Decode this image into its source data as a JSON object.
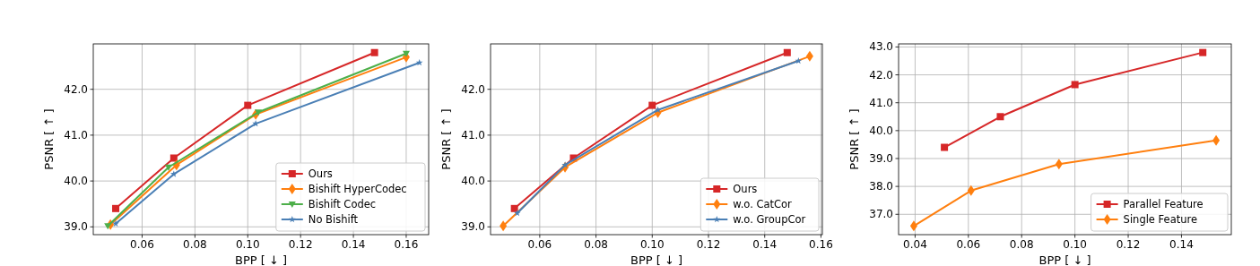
{
  "chart_data": [
    {
      "type": "line",
      "xlabel": "BPP [ ↓ ]",
      "ylabel": "PSNR [ ↑ ]",
      "xlim": [
        0.0415,
        0.1685
      ],
      "ylim": [
        38.83,
        42.99
      ],
      "xticks": [
        {
          "value": 0.06,
          "label": "0.06"
        },
        {
          "value": 0.08,
          "label": "0.08"
        },
        {
          "value": 0.1,
          "label": "0.10"
        },
        {
          "value": 0.12,
          "label": "0.12"
        },
        {
          "value": 0.14,
          "label": "0.14"
        },
        {
          "value": 0.16,
          "label": "0.16"
        }
      ],
      "yticks": [
        {
          "value": 39,
          "label": "39.0"
        },
        {
          "value": 40,
          "label": "40.0"
        },
        {
          "value": 41,
          "label": "41.0"
        },
        {
          "value": 42,
          "label": "42.0"
        }
      ],
      "grid": true,
      "legend": "bottom right",
      "series": [
        {
          "name": "Ours",
          "color": "#d62728",
          "marker": "square",
          "x": [
            0.05,
            0.072,
            0.1,
            0.148
          ],
          "values": [
            39.4,
            40.5,
            41.65,
            42.8
          ]
        },
        {
          "name": "Bishift HyperCodec",
          "color": "#ff7f0e",
          "marker": "diamond",
          "x": [
            0.048,
            0.073,
            0.103,
            0.16
          ],
          "values": [
            39.05,
            40.35,
            41.45,
            42.7
          ]
        },
        {
          "name": "Bishift Codec",
          "color": "#4daf4a",
          "marker": "triangle",
          "x": [
            0.047,
            0.07,
            0.104,
            0.16
          ],
          "values": [
            39.02,
            40.3,
            41.5,
            42.78
          ]
        },
        {
          "name": "No Bishift",
          "color": "#4a7fb5",
          "marker": "star",
          "x": [
            0.05,
            0.072,
            0.103,
            0.165
          ],
          "values": [
            39.07,
            40.15,
            41.25,
            42.58
          ]
        }
      ]
    },
    {
      "type": "line",
      "xlabel": "BPP [ ↓ ]",
      "ylabel": "PSNR [ ↑ ]",
      "xlim": [
        0.0425,
        0.1605
      ],
      "ylim": [
        38.83,
        42.99
      ],
      "xticks": [
        {
          "value": 0.06,
          "label": "0.06"
        },
        {
          "value": 0.08,
          "label": "0.08"
        },
        {
          "value": 0.1,
          "label": "0.10"
        },
        {
          "value": 0.12,
          "label": "0.12"
        },
        {
          "value": 0.14,
          "label": "0.14"
        },
        {
          "value": 0.16,
          "label": "0.16"
        }
      ],
      "yticks": [
        {
          "value": 39,
          "label": "39.0"
        },
        {
          "value": 40,
          "label": "40.0"
        },
        {
          "value": 41,
          "label": "41.0"
        },
        {
          "value": 42,
          "label": "42.0"
        }
      ],
      "grid": true,
      "legend": "bottom right",
      "series": [
        {
          "name": "Ours",
          "color": "#d62728",
          "marker": "square",
          "x": [
            0.051,
            0.072,
            0.1,
            0.148
          ],
          "values": [
            39.4,
            40.5,
            41.65,
            42.8
          ]
        },
        {
          "name": "w.o. CatCor",
          "color": "#ff7f0e",
          "marker": "diamond",
          "x": [
            0.047,
            0.069,
            0.102,
            0.156
          ],
          "values": [
            39.02,
            40.3,
            41.49,
            42.72
          ]
        },
        {
          "name": "w.o. GroupCor",
          "color": "#4a7fb5",
          "marker": "star",
          "x": [
            0.052,
            0.069,
            0.102,
            0.152
          ],
          "values": [
            39.3,
            40.35,
            41.55,
            42.62
          ]
        }
      ]
    },
    {
      "type": "line",
      "xlabel": "BPP [ ↓ ]",
      "ylabel": "PSNR [ ↑ ]",
      "xlim": [
        0.0338,
        0.1587
      ],
      "ylim": [
        36.27,
        43.11
      ],
      "xticks": [
        {
          "value": 0.04,
          "label": "0.04"
        },
        {
          "value": 0.06,
          "label": "0.06"
        },
        {
          "value": 0.08,
          "label": "0.08"
        },
        {
          "value": 0.1,
          "label": "0.10"
        },
        {
          "value": 0.12,
          "label": "0.12"
        },
        {
          "value": 0.14,
          "label": "0.14"
        }
      ],
      "yticks": [
        {
          "value": 37,
          "label": "37.0"
        },
        {
          "value": 38,
          "label": "38.0"
        },
        {
          "value": 39,
          "label": "39.0"
        },
        {
          "value": 40,
          "label": "40.0"
        },
        {
          "value": 41,
          "label": "41.0"
        },
        {
          "value": 42,
          "label": "42.0"
        },
        {
          "value": 43,
          "label": "43.0"
        }
      ],
      "grid": true,
      "legend": "bottom right",
      "series": [
        {
          "name": "Parallel Feature",
          "color": "#d62728",
          "marker": "square",
          "x": [
            0.051,
            0.072,
            0.1,
            0.148
          ],
          "values": [
            39.4,
            40.5,
            41.65,
            42.8
          ]
        },
        {
          "name": "Single Feature",
          "color": "#ff7f0e",
          "marker": "diamond",
          "x": [
            0.0395,
            0.061,
            0.094,
            0.153
          ],
          "values": [
            36.58,
            37.85,
            38.8,
            39.65
          ]
        }
      ]
    }
  ]
}
